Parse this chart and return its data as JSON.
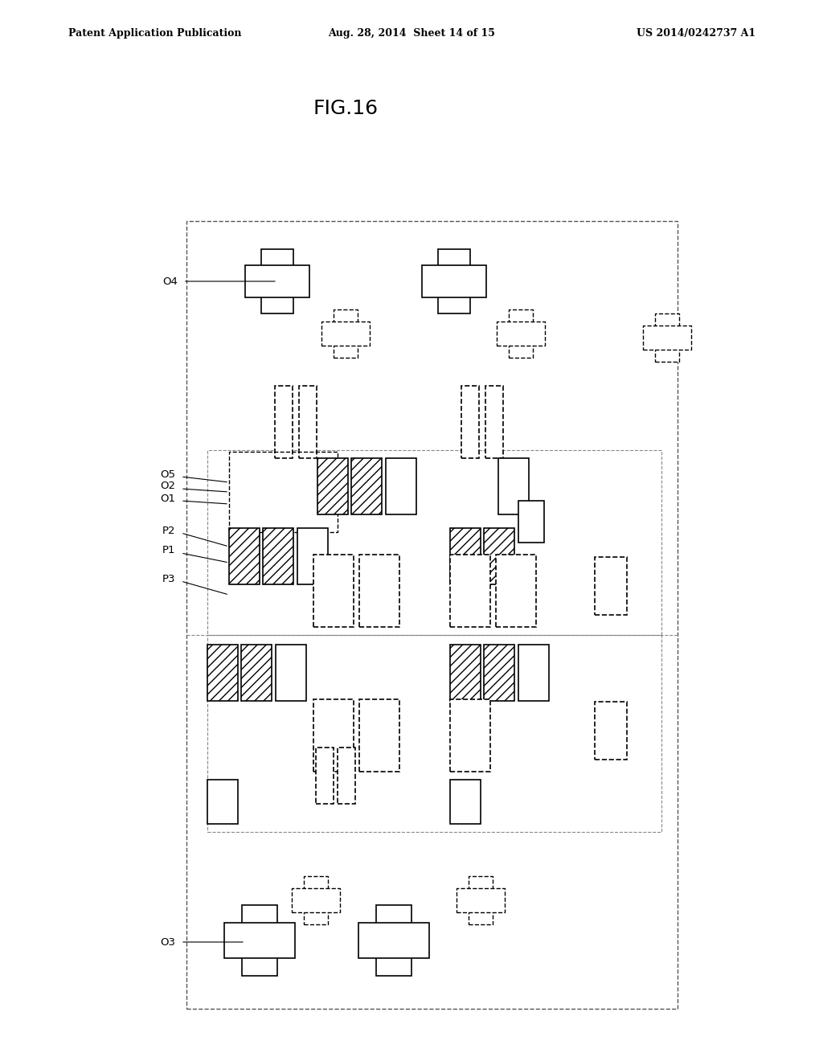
{
  "title": "FIG.16",
  "header_left": "Patent Application Publication",
  "header_center": "Aug. 28, 2014  Sheet 14 of 15",
  "header_right": "US 2014/0242737 A1",
  "bg_color": "#ffffff"
}
